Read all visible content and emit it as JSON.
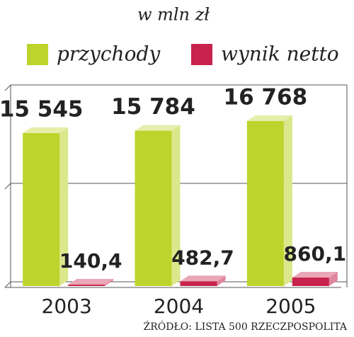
{
  "chart_data": {
    "type": "bar3d",
    "subtitle": "w mln zł",
    "categories": [
      "2003",
      "2004",
      "2005"
    ],
    "series": [
      {
        "name": "przychody",
        "color": "#bdd42c",
        "values": [
          15545,
          15784,
          16768
        ],
        "value_labels": [
          "15 545",
          "15 784",
          "16 768"
        ]
      },
      {
        "name": "wynik netto",
        "color": "#c8234c",
        "values": [
          140.4,
          482.7,
          860.1
        ],
        "value_labels": [
          "140,4",
          "482,7",
          "860,1"
        ]
      }
    ],
    "ylim": [
      0,
      20000
    ],
    "yticks": [
      0,
      10000,
      20000
    ],
    "ytick_labels": false,
    "grid": true,
    "source": "ŹRÓDŁO: LISTA 500 RZECZPOSPOLITA"
  }
}
